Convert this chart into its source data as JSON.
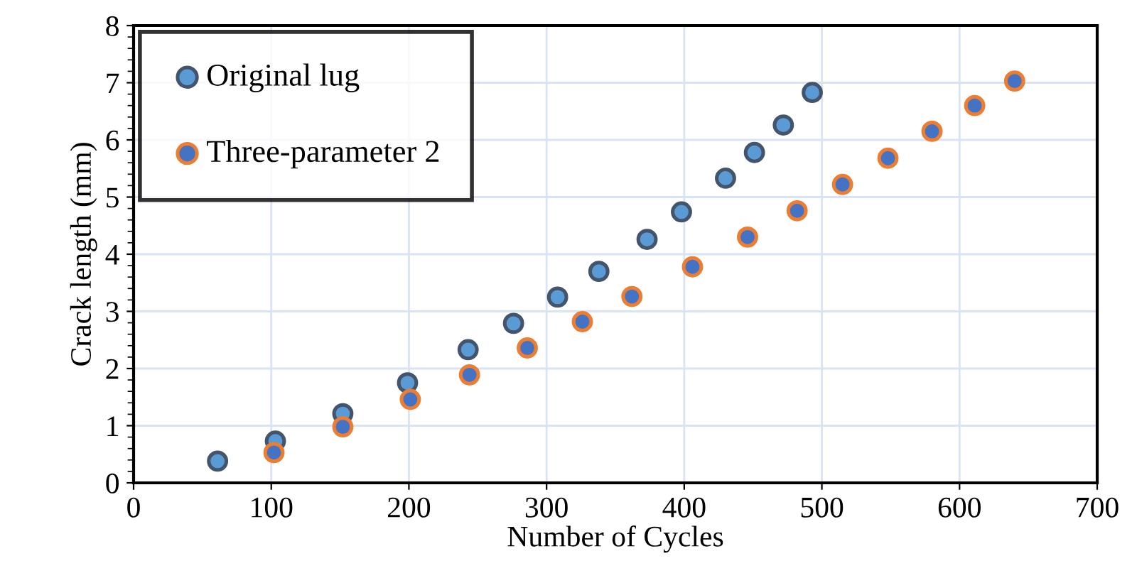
{
  "chart_data": {
    "type": "scatter",
    "xlabel": "Number of Cycles",
    "ylabel": "Crack length (mm)",
    "xlim": [
      0,
      700
    ],
    "xticks": [
      0,
      100,
      200,
      300,
      400,
      500,
      600,
      700
    ],
    "ylim": [
      0,
      8
    ],
    "yticks": [
      0,
      1,
      2,
      3,
      4,
      5,
      6,
      7,
      8
    ],
    "grid": true,
    "legend": "top left",
    "marker": "circle",
    "series": [
      {
        "name": "Original lug",
        "color": "#5b9bd5",
        "x": [
          61,
          103,
          152,
          199,
          243,
          276,
          308,
          338,
          373,
          398,
          430,
          451,
          472,
          493
        ],
        "values": [
          0.38,
          0.73,
          1.21,
          1.75,
          2.33,
          2.79,
          3.25,
          3.7,
          4.26,
          4.74,
          5.33,
          5.78,
          6.26,
          6.83
        ]
      },
      {
        "name": "Three-parameter 2",
        "color": "#4472c4",
        "x": [
          102,
          152,
          201,
          244,
          286,
          326,
          362,
          406,
          446,
          482,
          515,
          548,
          580,
          611,
          640
        ],
        "values": [
          0.53,
          0.98,
          1.46,
          1.89,
          2.36,
          2.82,
          3.26,
          3.78,
          4.3,
          4.76,
          5.22,
          5.68,
          6.15,
          6.6,
          7.03
        ]
      }
    ]
  }
}
